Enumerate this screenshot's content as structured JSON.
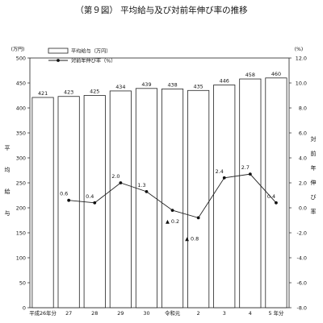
{
  "title": "（第９図） 平均給与及び対前年伸び率の推移",
  "chart_data": {
    "type": "bar",
    "categories": [
      "平成26年分",
      "27",
      "28",
      "29",
      "30",
      "令和元",
      "2",
      "3",
      "4",
      "5 年分"
    ],
    "series": [
      {
        "name": "平均給与（万円）",
        "type": "bar",
        "axis": "left",
        "values": [
          421,
          423,
          425,
          434,
          439,
          438,
          435,
          446,
          458,
          460
        ]
      },
      {
        "name": "対前年伸び率（%）",
        "type": "line",
        "axis": "right",
        "values": [
          null,
          0.6,
          0.4,
          2.0,
          1.3,
          -0.2,
          -0.8,
          2.4,
          2.7,
          0.4
        ],
        "labels": [
          "",
          "0.6",
          "0.4",
          "2.0",
          "1.3",
          "▲ 0.2",
          "▲ 0.8",
          "2.4",
          "2.7",
          "0.4"
        ]
      }
    ],
    "left_axis": {
      "unit": "(万円)",
      "label": "平均給与",
      "ylim": [
        0,
        500
      ],
      "ticks": [
        0,
        50,
        100,
        150,
        200,
        250,
        300,
        350,
        400,
        450,
        500
      ]
    },
    "right_axis": {
      "unit": "(%)",
      "label": "対前年伸び率",
      "ylim": [
        -8,
        12
      ],
      "ticks": [
        "-8.0",
        "-6.0",
        "-4.0",
        "-2.0",
        "0.0",
        "2.0",
        "4.0",
        "6.0",
        "8.0",
        "10.0",
        "12.0"
      ]
    },
    "grid": false,
    "legend_position": "top-left"
  }
}
